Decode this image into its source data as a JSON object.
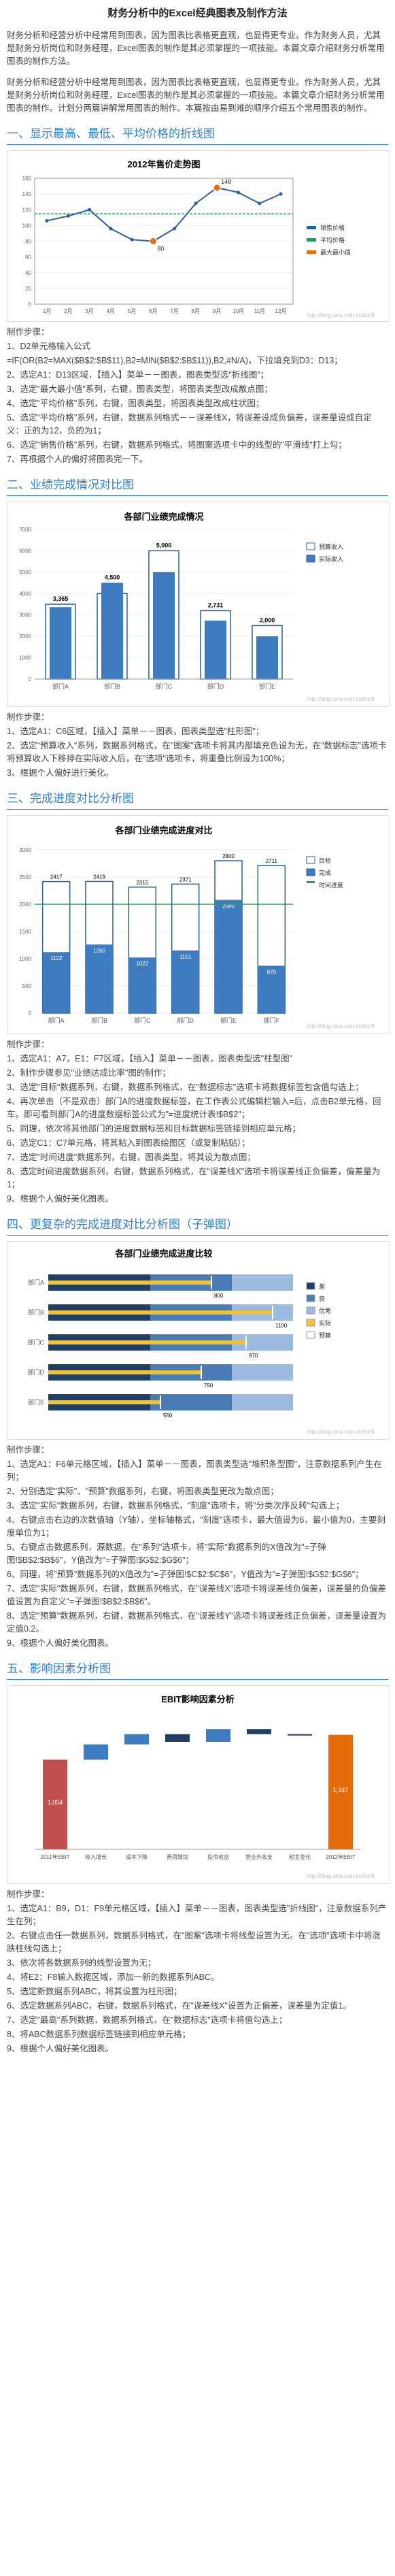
{
  "title": "财务分析中的Excel经典图表及制作方法",
  "intro": [
    "财务分析和经营分析中经常用到图表，因为图表比表格更直观，也显得更专业。作为财务人员，尤其是财务分析岗位和财务经理，Excel图表的制作是其必须掌握的一项技能。本篇文章介绍财务分析常用图表的制作方法。",
    "财务分析和经营分析中经常用到图表，因为图表比表格更直观，也显得更专业。作为财务人员，尤其是财务分析岗位和财务经理，Excel图表的制作是其必须掌握的一项技能。本篇文章介绍财务分析常用图表的制作。计划分两篇讲解常用图表的制作。本篇按由易到难的顺序介绍五个常用图表的制作。"
  ],
  "sections": [
    {
      "heading": "一、显示最高、最低、平均价格的折线图",
      "steps_title": "制作步骤：",
      "steps": [
        "1、D2单元格输入公式",
        "=IF(OR(B2=MAX($B$2:$B$11),B2=MIN($B$2:$B$11)),B2,#N/A)，下拉填充到D3：D13；",
        "2、选定A1：D13区域，【插入】菜单－－图表，图表类型选\"折线图\"；",
        "3、选定\"最大最小值\"系列，右键，图表类型，将图表类型改成散点图；",
        "4、选定\"平均价格\"系列，右键，图表类型，将图表类型改成柱状图；",
        "5、选定\"平均价格\"系列，右键，数据系列格式－－误差线X，将误差设成负偏差，误差量设成自定义：正的为12，负的为1；",
        "6、选定\"销售价格\"系列，右键，数据系列格式，将图案选项卡中的线型的\"平滑线\"打上勾；",
        "7、再根据个人的偏好将图表完一下。"
      ]
    },
    {
      "heading": "二、业绩完成情况对比图",
      "steps_title": "制作步骤：",
      "steps": [
        "1、选定A1：C6区域，【插入】菜单－－图表，图表类型选\"柱形图\"；",
        "2、选定\"预算收入\"系列，数据系列格式，在\"图案\"选项卡将其内部填充色设为无，在\"数据标志\"选项卡将预算收入下移排在实际收入后，在\"选项\"选项卡，将重叠比例设为100%；",
        "3、根据个人偏好进行美化。"
      ]
    },
    {
      "heading": "三、完成进度对比分析图",
      "steps_title": "制作步骤：",
      "steps": [
        "1、选定A1：A7，E1：F7区域，【插入】菜单－－图表，图表类型选\"柱型图\"",
        "2、制作步骤参见\"业绩达成比率\"图的制作；",
        "3、选定\"目标\"数据系列，右键，数据系列格式，在\"数据标志\"选项卡将数据标签包含值勾选上；",
        "4、再次单击（不是双击）部门A的进度数据标签，在工作表公式编辑栏输入=后，点击B2单元格，回车。即可看到部门A的进度数据标签公式为\"=进度统计表!$B$2\"；",
        "5、同理，依次将其他部门的进度数据标签和目标数据标签链接到相应单元格；",
        "6、选定C1：C7单元格，将其粘入到图表绘图区（或复制粘贴）；",
        "7、选定\"时间进度\"数据系列，右键，图表类型，将其设为散点图；",
        "8、选定时间进度数据系列，右键，数据系列格式，在\"误差线X\"选项卡将误差线正负偏差，偏差量为1；",
        "9、根据个人偏好美化图表。"
      ]
    },
    {
      "heading": "四、更复杂的完成进度对比分析图（子弹图）",
      "steps_title": "制作步骤：",
      "steps": [
        "1、选定A1：F6单元格区域，【插入】菜单－－图表，图表类型选\"堆积条型图\"，注意数据系列产生在列；",
        "2、分别选定\"实际\"、\"预算\"数据系列，右键，将图表类型更改为散点图；",
        "3、选定\"实际\"数据系列，右键，数据系列格式，\"刻度\"选项卡，将\"分类次序反转\"勾选上；",
        "4、右键点击右边的次数值轴（Y轴），坐标轴格式，\"刻度\"选项卡，最大值设为6，最小值为0，主要刻度单位为1；",
        "5、右键点击数据系列，源数据，在\"系列\"选项卡，将\"实际\"数据系列的X值改为\"=子弹图!$B$2:$B$6\"，Y值改为\"=子弹图!$G$2:$G$6\"；",
        "6、同理，将\"预算\"数据系列的X值改为\"=子弹图!$C$2:$C$6\"，Y值改为\"=子弹图!$G$2:$G$6\"；",
        "7、选定\"实际\"数据系列，右键，数据系列格式，在\"误差线X\"选项卡将误差线负偏差，误差量的负偏差值设置为自定义\"=子弹图!$B$2:$B$6\"。",
        "8、选定\"预算\"数据系列，右键，数据系列格式，在\"误差线Y\"选项卡将误差线正负偏差，误差量设置为定值0.2。",
        "9、根据个人偏好美化图表。"
      ]
    },
    {
      "heading": "五、影响因素分析图",
      "steps_title": "制作步骤：",
      "steps": [
        "1、选定A1：B9，D1：F9单元格区域，【插入】菜单－－图表，图表类型选\"折线图\"，注意数据系列产生在列；",
        "2、右键点击任一数据系列，数据系列格式，在\"图案\"选项卡将线型设置为无。在\"选项\"选项卡中将涨跌柱线勾选上；",
        "3、依次将各数据系列的线型设置为无；",
        "4、将E2：F8输入数据区域，添加一新的数据系列ABC。",
        "5、选定新数据系列ABC，将其设置为柱形图；",
        "6、选定数据系列ABC，右键，数据系列格式，在\"误差线X\"设置为正偏差，误差量为定值1。",
        "7、选定\"最高\"系列数据，数据系列格式，在\"数据标志\"选项卡将值勾选上；",
        "8、将ABC数据系列数据标签链接到相应单元格；",
        "9、根据个人偏好美化图表。"
      ]
    }
  ],
  "chart1": {
    "title": "2012年售价走势图",
    "x": [
      "1月",
      "2月",
      "3月",
      "4月",
      "5月",
      "6月",
      "7月",
      "8月",
      "9月",
      "10月",
      "11月",
      "12月"
    ],
    "values": [
      106,
      112,
      120,
      96,
      82,
      80,
      96,
      128,
      148,
      142,
      128,
      140
    ],
    "labels": {
      "max": "148",
      "min": "80"
    },
    "legend": [
      "销售价格",
      "平均价格",
      "最大最小值"
    ],
    "ylim": [
      0,
      160
    ],
    "watermark": "http://blog.sina.com.cn/ktz/8"
  },
  "chart2": {
    "title": "各部门业绩完成情况",
    "categories": [
      "部门A",
      "部门B",
      "部门C",
      "部门D",
      "部门E"
    ],
    "actual": [
      3365,
      4500,
      5000,
      2731,
      2000
    ],
    "budget": [
      3500,
      4000,
      6000,
      3200,
      2500
    ],
    "legend": [
      "预算收入",
      "实际收入"
    ],
    "ylim": [
      0,
      7000
    ],
    "watermark": "http://blog.sina.com.cn/ktz/8"
  },
  "chart3": {
    "title": "各部门业绩完成进度对比",
    "categories": [
      "部门A",
      "部门B",
      "部门C",
      "部门D",
      "部门E",
      "部门F"
    ],
    "target": [
      2417,
      2419,
      2315,
      2371,
      2800,
      2711
    ],
    "actual": [
      1122,
      1260,
      1022,
      1151,
      2080,
      870
    ],
    "legend": [
      "目标",
      "完成",
      "时间进度"
    ],
    "ylim": [
      0,
      3000
    ],
    "watermark": "http://blog.sina.com.cn/ktz/8"
  },
  "chart4": {
    "title": "各部门业绩完成进度比较",
    "categories": [
      "部门A",
      "部门B",
      "部门C",
      "部门D",
      "部门E"
    ],
    "actual": [
      800,
      1100,
      970,
      750,
      550
    ],
    "legend": [
      "差",
      "良",
      "优秀",
      "实际",
      "预算"
    ],
    "xlim": [
      0,
      1200
    ],
    "watermark": "http://blog.sina.com.cn/ktz/8"
  },
  "chart5": {
    "title": "EBIT影响因素分析",
    "categories": [
      "2011年EBIT",
      "收入增长",
      "成本下降",
      "费用增加",
      "投资收益",
      "营业外收支",
      "税金变化",
      "2012年EBIT"
    ],
    "labels": [
      "1,054",
      "",
      "",
      "",
      "",
      "",
      "",
      "1,347"
    ],
    "watermark": "http://blog.sina.com.cn/ktz/8"
  }
}
